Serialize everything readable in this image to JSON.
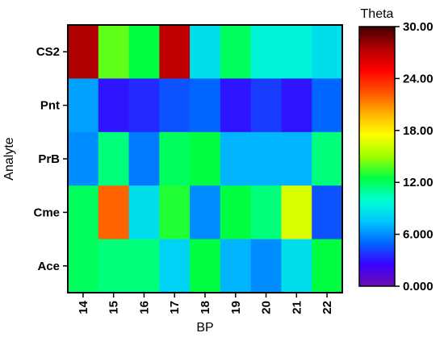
{
  "chart_data": {
    "type": "heatmap",
    "title": "",
    "xlabel": "BP",
    "ylabel": "Analyte",
    "x_categories": [
      "14",
      "15",
      "16",
      "17",
      "18",
      "19",
      "20",
      "21",
      "22"
    ],
    "y_categories": [
      "CS2",
      "Pnt",
      "PrB",
      "Cme",
      "Ace"
    ],
    "values": [
      [
        27.5,
        14.0,
        12.5,
        27.0,
        8.5,
        12.0,
        9.5,
        9.5,
        8.5
      ],
      [
        6.5,
        3.0,
        3.5,
        4.5,
        5.0,
        3.0,
        4.0,
        3.0,
        5.0
      ],
      [
        6.0,
        11.5,
        5.5,
        12.0,
        12.5,
        7.0,
        7.0,
        7.0,
        11.5
      ],
      [
        12.0,
        22.0,
        8.5,
        13.0,
        6.0,
        12.5,
        11.5,
        16.5,
        4.5
      ],
      [
        12.0,
        11.5,
        11.5,
        8.0,
        12.5,
        7.0,
        6.0,
        8.5,
        12.5
      ]
    ],
    "colorbar": {
      "title": "Theta",
      "min": 0,
      "max": 30,
      "ticks": [
        "0.000",
        "6.000",
        "12.00",
        "18.00",
        "24.00",
        "30.00"
      ],
      "tick_values": [
        0,
        6,
        12,
        18,
        24,
        30
      ]
    },
    "colorscale": [
      "#6a0dad",
      "#3b00ff",
      "#0066ff",
      "#00c8ff",
      "#00ffd0",
      "#00ff40",
      "#a0ff00",
      "#ffff00",
      "#ffb000",
      "#ff5000",
      "#ff0000",
      "#b00000",
      "#400000"
    ]
  }
}
